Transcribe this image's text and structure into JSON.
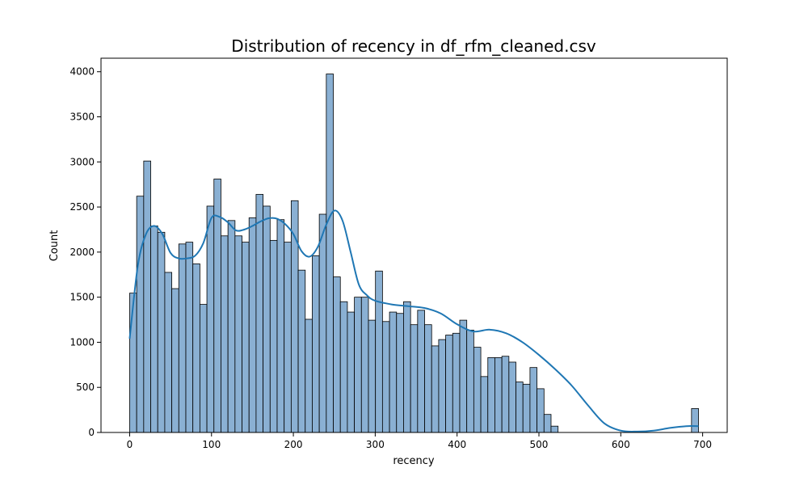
{
  "chart_data": {
    "type": "bar",
    "subtype": "histogram-with-kde",
    "title": "Distribution of recency in df_rfm_cleaned.csv",
    "xlabel": "recency",
    "ylabel": "Count",
    "xlim": [
      -35,
      730
    ],
    "ylim": [
      0,
      4150
    ],
    "xticks": [
      0,
      100,
      200,
      300,
      400,
      500,
      600,
      700
    ],
    "yticks": [
      0,
      500,
      1000,
      1500,
      2000,
      2500,
      3000,
      3500,
      4000
    ],
    "grid": false,
    "bin_width": 8.58,
    "bins": [
      {
        "x0": 0.0,
        "count": 1545
      },
      {
        "x0": 8.58,
        "count": 2620
      },
      {
        "x0": 17.16,
        "count": 3010
      },
      {
        "x0": 25.74,
        "count": 2290
      },
      {
        "x0": 34.32,
        "count": 2220
      },
      {
        "x0": 42.9,
        "count": 1775
      },
      {
        "x0": 51.48,
        "count": 1595
      },
      {
        "x0": 60.06,
        "count": 2090
      },
      {
        "x0": 68.64,
        "count": 2110
      },
      {
        "x0": 77.22,
        "count": 1870
      },
      {
        "x0": 85.8,
        "count": 1420
      },
      {
        "x0": 94.38,
        "count": 2510
      },
      {
        "x0": 102.96,
        "count": 2810
      },
      {
        "x0": 111.54,
        "count": 2180
      },
      {
        "x0": 120.12,
        "count": 2350
      },
      {
        "x0": 128.7,
        "count": 2180
      },
      {
        "x0": 137.28,
        "count": 2110
      },
      {
        "x0": 145.86,
        "count": 2380
      },
      {
        "x0": 154.44,
        "count": 2640
      },
      {
        "x0": 163.02,
        "count": 2510
      },
      {
        "x0": 171.6,
        "count": 2130
      },
      {
        "x0": 180.18,
        "count": 2360
      },
      {
        "x0": 188.76,
        "count": 2110
      },
      {
        "x0": 197.34,
        "count": 2570
      },
      {
        "x0": 205.92,
        "count": 1800
      },
      {
        "x0": 214.5,
        "count": 1255
      },
      {
        "x0": 223.08,
        "count": 1960
      },
      {
        "x0": 231.66,
        "count": 2420
      },
      {
        "x0": 240.24,
        "count": 3975
      },
      {
        "x0": 248.82,
        "count": 1725
      },
      {
        "x0": 257.4,
        "count": 1450
      },
      {
        "x0": 265.98,
        "count": 1335
      },
      {
        "x0": 274.56,
        "count": 1500
      },
      {
        "x0": 283.14,
        "count": 1500
      },
      {
        "x0": 291.72,
        "count": 1245
      },
      {
        "x0": 300.3,
        "count": 1790
      },
      {
        "x0": 308.88,
        "count": 1230
      },
      {
        "x0": 317.46,
        "count": 1335
      },
      {
        "x0": 326.04,
        "count": 1320
      },
      {
        "x0": 334.62,
        "count": 1450
      },
      {
        "x0": 343.2,
        "count": 1195
      },
      {
        "x0": 351.78,
        "count": 1355
      },
      {
        "x0": 360.36,
        "count": 1195
      },
      {
        "x0": 368.94,
        "count": 960
      },
      {
        "x0": 377.52,
        "count": 1030
      },
      {
        "x0": 386.1,
        "count": 1080
      },
      {
        "x0": 394.68,
        "count": 1100
      },
      {
        "x0": 403.26,
        "count": 1245
      },
      {
        "x0": 411.84,
        "count": 1135
      },
      {
        "x0": 420.42,
        "count": 945
      },
      {
        "x0": 429.0,
        "count": 620
      },
      {
        "x0": 437.58,
        "count": 830
      },
      {
        "x0": 446.16,
        "count": 830
      },
      {
        "x0": 454.74,
        "count": 845
      },
      {
        "x0": 463.32,
        "count": 780
      },
      {
        "x0": 471.9,
        "count": 560
      },
      {
        "x0": 480.48,
        "count": 535
      },
      {
        "x0": 489.06,
        "count": 720
      },
      {
        "x0": 497.64,
        "count": 485
      },
      {
        "x0": 506.22,
        "count": 200
      },
      {
        "x0": 514.8,
        "count": 70
      },
      {
        "x0": 686.4,
        "count": 265
      }
    ],
    "kde": {
      "x": [
        0,
        10,
        20,
        30,
        40,
        50,
        60,
        70,
        80,
        90,
        100,
        110,
        120,
        130,
        140,
        150,
        160,
        170,
        180,
        190,
        200,
        210,
        220,
        230,
        240,
        250,
        260,
        270,
        280,
        290,
        300,
        320,
        340,
        360,
        380,
        400,
        420,
        440,
        460,
        480,
        500,
        520,
        540,
        560,
        580,
        600,
        620,
        640,
        660,
        680,
        695
      ],
      "y": [
        1040,
        1850,
        2200,
        2290,
        2200,
        1990,
        1930,
        1930,
        1960,
        2100,
        2380,
        2390,
        2330,
        2240,
        2250,
        2290,
        2340,
        2375,
        2370,
        2310,
        2200,
        2010,
        1950,
        2060,
        2300,
        2460,
        2350,
        2000,
        1640,
        1520,
        1460,
        1420,
        1400,
        1380,
        1320,
        1200,
        1120,
        1140,
        1100,
        1000,
        860,
        700,
        520,
        300,
        100,
        20,
        10,
        20,
        50,
        70,
        70
      ]
    },
    "colors": {
      "bar_fill": "#8AB0D3",
      "bar_edge": "#000000",
      "kde_line": "#1F77B4"
    }
  }
}
